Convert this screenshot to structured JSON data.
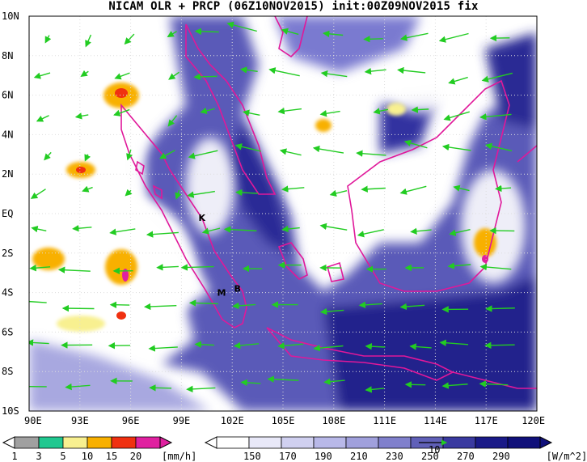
{
  "title": "NICAM OLR + PRCP (06Z10NOV2015) init:00Z09NOV2015 fix",
  "map": {
    "lat_labels": [
      "10N",
      "8N",
      "6N",
      "4N",
      "2N",
      "EQ",
      "2S",
      "4S",
      "6S",
      "8S",
      "10S"
    ],
    "lon_labels": [
      "90E",
      "93E",
      "96E",
      "99E",
      "102E",
      "105E",
      "108E",
      "111E",
      "114E",
      "117E",
      "120E"
    ],
    "lon_range": [
      90,
      120
    ],
    "lat_range": [
      -10,
      10
    ],
    "grid": "dotted",
    "coastline_color": "#e0189a",
    "wind_vector_color": "#22cc22",
    "place_markers": [
      {
        "label": "K",
        "lon": 100.2,
        "lat": -0.2
      },
      {
        "label": "M",
        "lon": 101.3,
        "lat": -4.0
      },
      {
        "label": "B",
        "lon": 102.3,
        "lat": -3.8
      }
    ]
  },
  "precip_colorbar": {
    "unit": "[mm/h]",
    "labels": [
      "1",
      "3",
      "5",
      "10",
      "15",
      "20"
    ],
    "colors": [
      "#a0a0a0",
      "#20c890",
      "#f8f090",
      "#f8b000",
      "#f03010",
      "#e020a0"
    ]
  },
  "olr_colorbar": {
    "unit": "[W/m^2]",
    "labels": [
      "150",
      "170",
      "190",
      "210",
      "230",
      "250",
      "270",
      "290"
    ],
    "colors": [
      "#ffffff",
      "#e8e8f8",
      "#d0d0f0",
      "#b8b8e8",
      "#a0a0dc",
      "#8080cc",
      "#6060b8",
      "#3a3aa0",
      "#1a1a88",
      "#10107a"
    ]
  },
  "reference_vector_label": "10"
}
